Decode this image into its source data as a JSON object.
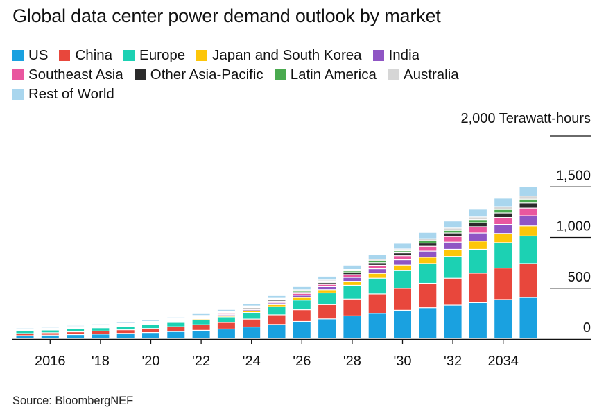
{
  "title": "Global data center power demand outlook by market",
  "unit_label": "2,000 Terawatt-hours",
  "source": "Source: BloombergNEF",
  "chart_data": {
    "type": "bar",
    "stacked": true,
    "title": "Global data center power demand outlook by market",
    "ylabel": "Terawatt-hours",
    "ylim": [
      0,
      2000
    ],
    "y_ticks": [
      0,
      500,
      1000,
      1500,
      2000
    ],
    "y_tick_labels": [
      "0",
      "500",
      "1,000",
      "1,500",
      "2,000 Terawatt-hours"
    ],
    "x_tick_labels": [
      {
        "year": 2016,
        "label": "2016"
      },
      {
        "year": 2018,
        "label": "'18"
      },
      {
        "year": 2020,
        "label": "'20"
      },
      {
        "year": 2022,
        "label": "'22"
      },
      {
        "year": 2024,
        "label": "'24"
      },
      {
        "year": 2026,
        "label": "'26"
      },
      {
        "year": 2028,
        "label": "'28"
      },
      {
        "year": 2030,
        "label": "'30"
      },
      {
        "year": 2032,
        "label": "'32"
      },
      {
        "year": 2034,
        "label": "2034"
      }
    ],
    "legend_position": "top",
    "categories": [
      2015,
      2016,
      2017,
      2018,
      2019,
      2020,
      2021,
      2022,
      2023,
      2024,
      2025,
      2026,
      2027,
      2028,
      2029,
      2030,
      2031,
      2032,
      2033,
      2034,
      2035
    ],
    "series": [
      {
        "name": "US",
        "color": "#1aa1e0",
        "values": [
          30,
          35,
          40,
          45,
          52,
          60,
          70,
          82,
          95,
          115,
          140,
          170,
          195,
          225,
          250,
          280,
          305,
          330,
          355,
          385,
          405
        ]
      },
      {
        "name": "China",
        "color": "#e8473c",
        "values": [
          20,
          23,
          27,
          30,
          35,
          40,
          47,
          55,
          65,
          78,
          95,
          115,
          140,
          165,
          190,
          215,
          240,
          265,
          290,
          310,
          335
        ]
      },
      {
        "name": "Europe",
        "color": "#1cd1b3",
        "values": [
          25,
          27,
          30,
          32,
          35,
          38,
          43,
          48,
          55,
          65,
          80,
          95,
          115,
          135,
          155,
          175,
          195,
          215,
          235,
          250,
          270
        ]
      },
      {
        "name": "Japan and South Korea",
        "color": "#fdc609",
        "values": [
          5,
          5,
          5,
          6,
          6,
          7,
          8,
          10,
          12,
          15,
          20,
          25,
          32,
          40,
          48,
          55,
          62,
          70,
          80,
          90,
          100
        ]
      },
      {
        "name": "India",
        "color": "#8f55c4",
        "values": [
          3,
          3,
          4,
          4,
          5,
          5,
          6,
          8,
          10,
          12,
          17,
          22,
          30,
          38,
          45,
          52,
          60,
          70,
          80,
          90,
          100
        ]
      },
      {
        "name": "Southeast Asia",
        "color": "#e9579f",
        "values": [
          3,
          4,
          4,
          5,
          5,
          6,
          7,
          8,
          10,
          12,
          15,
          18,
          22,
          28,
          35,
          40,
          47,
          55,
          62,
          68,
          75
        ]
      },
      {
        "name": "Other Asia-Pacific",
        "color": "#2b2b2b",
        "values": [
          3,
          3,
          4,
          4,
          5,
          5,
          6,
          7,
          8,
          10,
          12,
          14,
          17,
          20,
          25,
          28,
          32,
          35,
          40,
          45,
          50
        ]
      },
      {
        "name": "Latin America",
        "color": "#4aaa4f",
        "values": [
          3,
          3,
          3,
          4,
          4,
          5,
          5,
          6,
          7,
          8,
          10,
          12,
          14,
          16,
          18,
          20,
          23,
          26,
          30,
          33,
          38
        ]
      },
      {
        "name": "Australia",
        "color": "#d6d6d6",
        "values": [
          3,
          3,
          3,
          3,
          4,
          4,
          5,
          5,
          6,
          7,
          8,
          10,
          12,
          14,
          16,
          18,
          20,
          23,
          26,
          28,
          32
        ]
      },
      {
        "name": "Rest of World",
        "color": "#a9d6ee",
        "values": [
          10,
          10,
          11,
          12,
          13,
          14,
          16,
          18,
          20,
          23,
          27,
          32,
          38,
          44,
          50,
          56,
          62,
          70,
          76,
          84,
          90
        ]
      }
    ]
  }
}
